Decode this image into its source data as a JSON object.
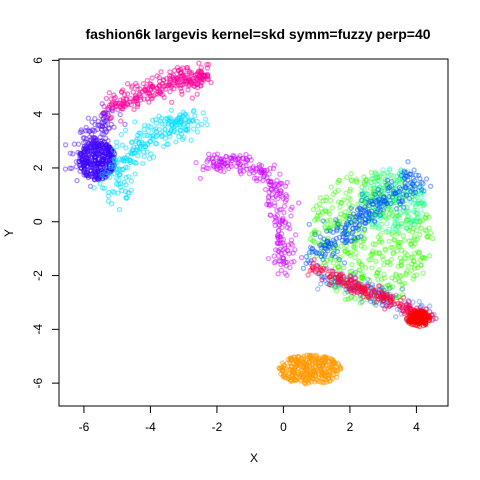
{
  "chart_data": {
    "type": "scatter",
    "title": "fashion6k largevis kernel=skd symm=fuzzy perp=40",
    "xlabel": "X",
    "ylabel": "Y",
    "xlim": [
      -6.75,
      4.95
    ],
    "ylim": [
      -6.85,
      6.05
    ],
    "x_ticks": [
      -6,
      -4,
      -2,
      0,
      2,
      4
    ],
    "y_ticks": [
      -6,
      -4,
      -2,
      0,
      2,
      4,
      6
    ],
    "x_tick_labels": [
      "-6",
      "-4",
      "-2",
      "0",
      "2",
      "4"
    ],
    "y_tick_labels": [
      "-6",
      "-4",
      "-2",
      "0",
      "2",
      "4",
      "6"
    ],
    "grid": false,
    "legend": "none",
    "marker": "open circle",
    "clusters": [
      {
        "color": "#ff0099",
        "alpha": 0.5,
        "n": 280,
        "shape": "band",
        "points": [
          [
            -5.3,
            4.0
          ],
          [
            -4.7,
            4.5
          ],
          [
            -4.0,
            4.9
          ],
          [
            -3.3,
            5.25
          ],
          [
            -2.7,
            5.4
          ],
          [
            -2.45,
            5.35
          ]
        ],
        "spread": 0.22
      },
      {
        "color": "#3300ff",
        "alpha": 0.5,
        "n": 300,
        "shape": "blob",
        "cx": -5.6,
        "cy": 2.3,
        "rx": 0.55,
        "ry": 0.75
      },
      {
        "color": "#5511ff",
        "alpha": 0.45,
        "n": 120,
        "shape": "band",
        "points": [
          [
            -6.2,
            1.4
          ],
          [
            -5.9,
            2.6
          ],
          [
            -5.6,
            3.4
          ],
          [
            -5.2,
            3.9
          ]
        ],
        "spread": 0.25
      },
      {
        "color": "#00ddff",
        "alpha": 0.5,
        "n": 240,
        "shape": "band",
        "points": [
          [
            -5.1,
            1.1
          ],
          [
            -4.8,
            2.0
          ],
          [
            -4.3,
            2.9
          ],
          [
            -3.7,
            3.3
          ],
          [
            -3.1,
            3.7
          ],
          [
            -2.8,
            3.7
          ]
        ],
        "spread": 0.28
      },
      {
        "color": "#cc00ff",
        "alpha": 0.45,
        "n": 260,
        "shape": "band",
        "points": [
          [
            -2.3,
            2.2
          ],
          [
            -1.5,
            2.15
          ],
          [
            -0.8,
            2.0
          ],
          [
            -0.3,
            1.4
          ],
          [
            -0.1,
            0.4
          ],
          [
            -0.05,
            -0.8
          ],
          [
            0.05,
            -1.8
          ]
        ],
        "spread": 0.2
      },
      {
        "color": "#ff9900",
        "alpha": 0.55,
        "n": 300,
        "shape": "blob",
        "cx": 0.8,
        "cy": -5.5,
        "rx": 0.95,
        "ry": 0.55
      },
      {
        "color": "#33ff00",
        "alpha": 0.45,
        "n": 520,
        "shape": "blob",
        "cx": 2.6,
        "cy": -0.6,
        "rx": 1.9,
        "ry": 2.5
      },
      {
        "color": "#00ff99",
        "alpha": 0.35,
        "n": 200,
        "shape": "blob",
        "cx": 3.3,
        "cy": 0.8,
        "rx": 1.0,
        "ry": 1.2
      },
      {
        "color": "#0055ff",
        "alpha": 0.45,
        "n": 260,
        "shape": "band",
        "points": [
          [
            0.9,
            -1.4
          ],
          [
            1.8,
            -0.4
          ],
          [
            2.6,
            0.4
          ],
          [
            3.3,
            1.0
          ],
          [
            4.0,
            1.7
          ]
        ],
        "spread": 0.25
      },
      {
        "color": "#3366ff",
        "alpha": 0.4,
        "n": 140,
        "shape": "band",
        "points": [
          [
            1.2,
            -2.0
          ],
          [
            2.2,
            -2.4
          ],
          [
            3.2,
            -2.9
          ],
          [
            4.3,
            -3.4
          ]
        ],
        "spread": 0.2
      },
      {
        "color": "#ff0044",
        "alpha": 0.5,
        "n": 240,
        "shape": "band",
        "points": [
          [
            0.8,
            -1.6
          ],
          [
            1.6,
            -2.1
          ],
          [
            2.5,
            -2.6
          ],
          [
            3.3,
            -3.0
          ],
          [
            4.0,
            -3.4
          ],
          [
            4.4,
            -3.6
          ]
        ],
        "spread": 0.13
      },
      {
        "color": "#ff0000",
        "alpha": 0.55,
        "n": 120,
        "shape": "blob",
        "cx": 4.05,
        "cy": -3.6,
        "rx": 0.35,
        "ry": 0.3
      }
    ]
  }
}
